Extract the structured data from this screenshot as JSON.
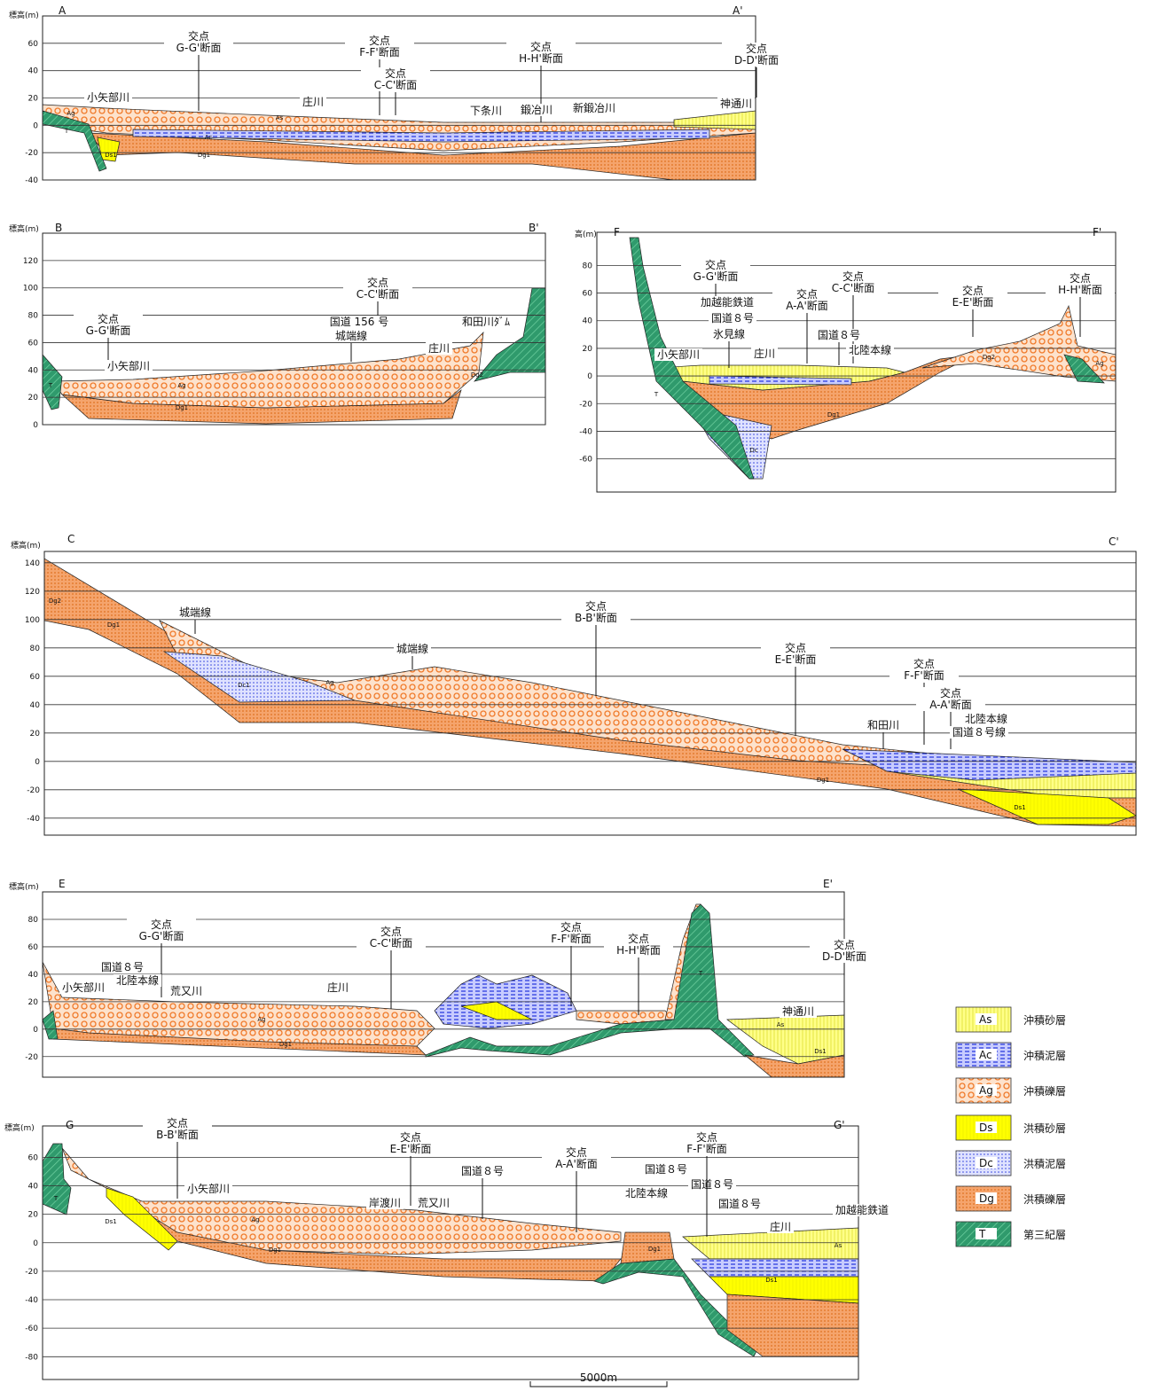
{
  "sections": [
    {
      "start": "A",
      "end": "A'",
      "axis_label": "標高(m)",
      "ylim": [
        -40,
        80
      ],
      "yticks": [
        60,
        40,
        20,
        0,
        -20,
        -40
      ],
      "annotations": [
        [
          "交点",
          "G-G'断面"
        ],
        [
          "交点",
          "F-F'断面"
        ],
        [
          "交点",
          "C-C'断面"
        ],
        [
          "交点",
          "H-H'断面"
        ],
        [
          "交点",
          "D-D'断面"
        ],
        [
          "小矢部川"
        ],
        [
          "庄川"
        ],
        [
          "下条川"
        ],
        [
          "鍛冶川"
        ],
        [
          "新鍛冶川"
        ],
        [
          "神通川"
        ]
      ],
      "layer_labels": [
        "Ag",
        "As",
        "Ac",
        "Ds1",
        "Dg1",
        "T"
      ]
    },
    {
      "start": "B",
      "end": "B'",
      "axis_label": "標高(m)",
      "ylim": [
        0,
        140
      ],
      "yticks": [
        120,
        100,
        80,
        60,
        40,
        20,
        0
      ],
      "annotations": [
        [
          "交点",
          "G-G'断面"
        ],
        [
          "交点",
          "C-C'断面"
        ],
        [
          "国道 156 号"
        ],
        [
          "城端線"
        ],
        [
          "和田川ﾀﾞﾑ"
        ],
        [
          "庄川"
        ],
        [
          "小矢部川"
        ]
      ],
      "layer_labels": [
        "Ag",
        "Dg1",
        "T",
        "Dg2"
      ]
    },
    {
      "start": "F",
      "end": "F'",
      "axis_label": "高(m)",
      "ylim": [
        -84,
        104
      ],
      "yticks": [
        80,
        60,
        40,
        20,
        0,
        -20,
        -40,
        -60
      ],
      "annotations": [
        [
          "交点",
          "G-G'断面"
        ],
        [
          "加越能鉄道"
        ],
        [
          "国道８号"
        ],
        [
          "氷見線"
        ],
        [
          "交点",
          "A-A'断面"
        ],
        [
          "交点",
          "C-C'断面"
        ],
        [
          "国道８号"
        ],
        [
          "北陸本線"
        ],
        [
          "交点",
          "E-E'断面"
        ],
        [
          "交点",
          "H-H'断面"
        ],
        [
          "小矢部川"
        ],
        [
          "庄川"
        ]
      ],
      "layer_labels": [
        "T",
        "Dc",
        "Dg1",
        "Ag",
        "Dg2"
      ]
    },
    {
      "start": "C",
      "end": "C'",
      "axis_label": "標高(m)",
      "ylim": [
        -52,
        148
      ],
      "yticks": [
        140,
        120,
        100,
        80,
        60,
        40,
        20,
        0,
        -20,
        -40
      ],
      "annotations": [
        [
          "城端線"
        ],
        [
          "交点",
          "B-B'断面"
        ],
        [
          "城端線"
        ],
        [
          "交点",
          "E-E'断面"
        ],
        [
          "交点",
          "F-F'断面"
        ],
        [
          "交点",
          "A-A'断面"
        ],
        [
          "北陸本線"
        ],
        [
          "国道８号線"
        ],
        [
          "和田川"
        ]
      ],
      "layer_labels": [
        "Dg2",
        "Dg1",
        "Dc1",
        "Ag",
        "Dg1",
        "Ds1"
      ]
    },
    {
      "start": "E",
      "end": "E'",
      "axis_label": "標高(m)",
      "ylim": [
        -35,
        100
      ],
      "yticks": [
        80,
        60,
        40,
        20,
        0,
        -20
      ],
      "annotations": [
        [
          "交点",
          "G-G'断面"
        ],
        [
          "国道８号"
        ],
        [
          "北陸本線"
        ],
        [
          "小矢部川"
        ],
        [
          "荒又川"
        ],
        [
          "庄川"
        ],
        [
          "交点",
          "C-C'断面"
        ],
        [
          "交点",
          "F-F'断面"
        ],
        [
          "交点",
          "H-H'断面"
        ],
        [
          "交点",
          "D-D'断面"
        ],
        [
          "神通川"
        ]
      ],
      "layer_labels": [
        "Ag",
        "Dg1",
        "T",
        "As",
        "Ds1"
      ]
    },
    {
      "start": "G",
      "end": "G'",
      "axis_label": "標高(m)",
      "ylim": [
        -96,
        82
      ],
      "yticks": [
        60,
        40,
        20,
        0,
        -20,
        -40,
        -60,
        -80
      ],
      "annotations": [
        [
          "交点",
          "B-B'断面"
        ],
        [
          "小矢部川"
        ],
        [
          "交点",
          "E-E'断面"
        ],
        [
          "岸渡川"
        ],
        [
          "荒又川"
        ],
        [
          "国道８号"
        ],
        [
          "交点",
          "A-A'断面"
        ],
        [
          "国道８号"
        ],
        [
          "北陸本線"
        ],
        [
          "国道８号"
        ],
        [
          "交点",
          "F-F'断面"
        ],
        [
          "国道８号"
        ],
        [
          "庄川"
        ],
        [
          "加越能鉄道"
        ]
      ],
      "layer_labels": [
        "T",
        "Ds1",
        "Ag",
        "Dg1",
        "Dg1",
        "As",
        "Ds1"
      ]
    }
  ],
  "legend": [
    {
      "code": "As",
      "name": "沖積砂層"
    },
    {
      "code": "Ac",
      "name": "沖積泥層"
    },
    {
      "code": "Ag",
      "name": "沖積礫層"
    },
    {
      "code": "Ds",
      "name": "洪積砂層"
    },
    {
      "code": "Dc",
      "name": "洪積泥層"
    },
    {
      "code": "Dg",
      "name": "洪積礫層"
    },
    {
      "code": "T",
      "name": "第三紀層"
    }
  ],
  "scale_label": "5000m"
}
